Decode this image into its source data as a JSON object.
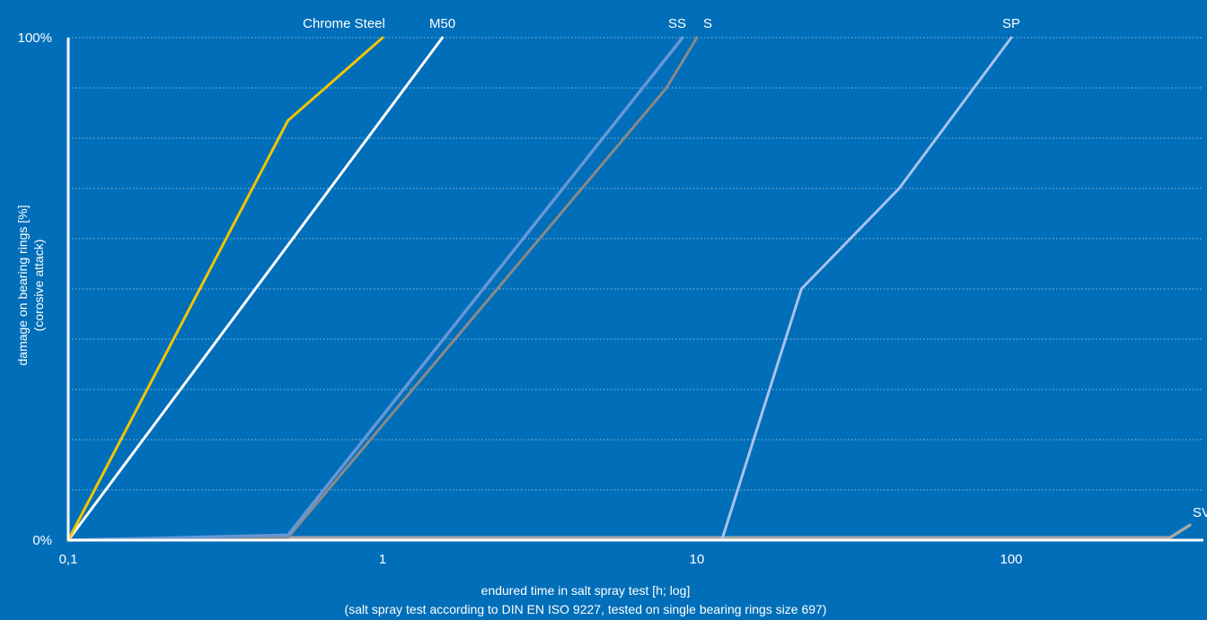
{
  "chart_data": {
    "type": "line",
    "title": "",
    "xlabel": "endured time in salt spray test [h; log]",
    "xlabel_note": "(salt spray test according to DIN EN ISO 9227, tested on single bearing rings size 697)",
    "ylabel": "damage on bearing rings [%]",
    "ylabel_note": "(corosive attack)",
    "xscale": "log",
    "xlim": [
      0.1,
      370
    ],
    "ylim": [
      0,
      100
    ],
    "grid": "horizontal dotted",
    "legend": "labels at line ends",
    "x_ticks": [
      {
        "value": 0.1,
        "label": "0,1"
      },
      {
        "value": 1,
        "label": "1"
      },
      {
        "value": 10,
        "label": "10"
      },
      {
        "value": 100,
        "label": "100"
      }
    ],
    "y_ticks": [
      {
        "value": 0,
        "label": "0%"
      },
      {
        "value": 100,
        "label": "100%"
      }
    ],
    "series": [
      {
        "name": "SV",
        "color": "#a8a8a8",
        "width": 3.5,
        "points": [
          [
            0.1,
            0
          ],
          [
            0.5,
            0.5
          ],
          [
            12,
            0.5
          ],
          [
            320,
            0.5
          ],
          [
            370,
            3
          ]
        ]
      },
      {
        "name": "SP",
        "color": "#a9c2ec",
        "width": 3,
        "points": [
          [
            0.1,
            0
          ],
          [
            12,
            0
          ],
          [
            21.5,
            50
          ],
          [
            44,
            70
          ],
          [
            100,
            100
          ]
        ]
      },
      {
        "name": "S",
        "color": "#8a8a8a",
        "width": 3,
        "points": [
          [
            0.1,
            0
          ],
          [
            0.5,
            0.5
          ],
          [
            8,
            90
          ],
          [
            10,
            100
          ]
        ]
      },
      {
        "name": "SS",
        "color": "#6597d6",
        "width": 3.5,
        "points": [
          [
            0.1,
            0
          ],
          [
            0.5,
            1
          ],
          [
            9,
            100
          ]
        ]
      },
      {
        "name": "M50",
        "color": "#ffffff",
        "width": 3,
        "points": [
          [
            0.1,
            0
          ],
          [
            1.55,
            100
          ]
        ]
      },
      {
        "name": "Chrome Steel",
        "color": "#f2c500",
        "width": 3,
        "points": [
          [
            0.1,
            0
          ],
          [
            0.5,
            83.5
          ],
          [
            1,
            100
          ]
        ]
      }
    ]
  }
}
